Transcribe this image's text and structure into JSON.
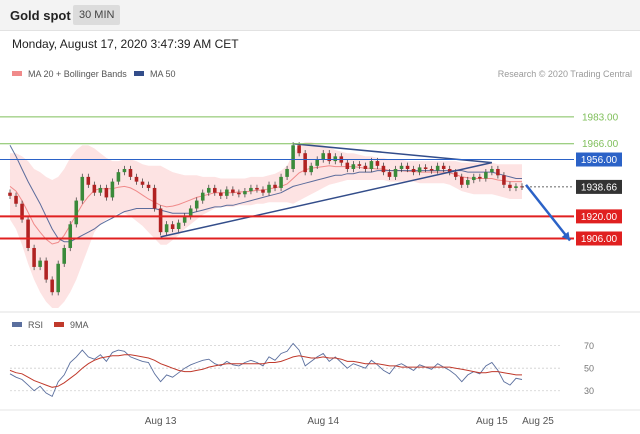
{
  "header": {
    "title": "Gold spot",
    "timeframe": "30 MIN"
  },
  "datetime": "Monday, August 17, 2020 3:47:39 AM CET",
  "credit": "Research © 2020 Trading Central",
  "colors": {
    "bollinger_fill": "#fde3e3",
    "ma20": "#f08a8a",
    "ma50": "#334d8a",
    "up_candle": "#3a8a3a",
    "down_candle": "#b02222",
    "resistance_green": "#7fbf5a",
    "blue_line": "#2b62c7",
    "support_red": "#e02020",
    "arrow": "#2b62c7",
    "last_price": "#333333"
  },
  "chart_data": [
    {
      "type": "line",
      "legend": [
        {
          "name": "MA 20 + Bollinger Bands",
          "color": "#f08a8a"
        },
        {
          "name": "MA 50",
          "color": "#334d8a"
        }
      ],
      "ylim": [
        1862,
        2000
      ],
      "levels": [
        {
          "value": 1983.0,
          "label": "1983.00",
          "kind": "resistance",
          "color": "#7fbf5a"
        },
        {
          "value": 1966.0,
          "label": "1966.00",
          "kind": "resistance",
          "color": "#7fbf5a"
        },
        {
          "value": 1956.0,
          "label": "1956.00",
          "kind": "resistance",
          "color": "#2b62c7"
        },
        {
          "value": 1938.66,
          "label": "1938.66",
          "kind": "last",
          "color": "#333333"
        },
        {
          "value": 1920.0,
          "label": "1920.00",
          "kind": "support",
          "color": "#e02020"
        },
        {
          "value": 1906.0,
          "label": "1906.00",
          "kind": "support",
          "color": "#e02020"
        }
      ],
      "x_ticks": [
        {
          "label": "Aug 13",
          "index": 25
        },
        {
          "label": "Aug 14",
          "index": 52
        },
        {
          "label": "Aug 15",
          "index": 80
        },
        {
          "label": "Aug 25",
          "index": 89
        }
      ],
      "close": [
        1933,
        1928,
        1918,
        1900,
        1888,
        1892,
        1880,
        1872,
        1890,
        1900,
        1915,
        1930,
        1945,
        1940,
        1935,
        1938,
        1932,
        1942,
        1948,
        1950,
        1945,
        1942,
        1940,
        1938,
        1925,
        1910,
        1915,
        1912,
        1916,
        1920,
        1925,
        1930,
        1935,
        1938,
        1935,
        1933,
        1937,
        1935,
        1934,
        1936,
        1938,
        1937,
        1935,
        1940,
        1938,
        1945,
        1950,
        1965,
        1960,
        1948,
        1952,
        1956,
        1960,
        1955,
        1958,
        1954,
        1950,
        1953,
        1952,
        1950,
        1955,
        1952,
        1948,
        1945,
        1950,
        1952,
        1950,
        1948,
        1951,
        1950,
        1949,
        1952,
        1950,
        1948,
        1945,
        1940,
        1943,
        1945,
        1944,
        1948,
        1950,
        1946,
        1940,
        1938,
        1939,
        1938.66
      ],
      "ma50": [
        1965,
        1958,
        1950,
        1942,
        1935,
        1928,
        1920,
        1912,
        1906,
        1904,
        1904,
        1906,
        1908,
        1910,
        1912,
        1915,
        1917,
        1919,
        1921,
        1923,
        1924,
        1925,
        1925,
        1925,
        1925,
        1924,
        1923,
        1922,
        1922,
        1922,
        1922,
        1923,
        1924,
        1925,
        1926,
        1926,
        1927,
        1927,
        1928,
        1929,
        1930,
        1931,
        1932,
        1933,
        1934,
        1935,
        1937,
        1939,
        1940,
        1941,
        1942,
        1943,
        1944,
        1945,
        1946,
        1946,
        1947,
        1947,
        1948,
        1948,
        1948,
        1949,
        1949,
        1949,
        1949,
        1949,
        1949,
        1949,
        1949,
        1949,
        1949,
        1949,
        1949,
        1949,
        1949,
        1949,
        1948,
        1948,
        1948,
        1948,
        1948,
        1947,
        1946,
        1945,
        1944,
        1944
      ],
      "bb_upper": [
        1960,
        1960,
        1958,
        1955,
        1950,
        1948,
        1945,
        1943,
        1945,
        1950,
        1957,
        1962,
        1965,
        1965,
        1963,
        1960,
        1957,
        1955,
        1955,
        1956,
        1956,
        1955,
        1953,
        1952,
        1952,
        1952,
        1950,
        1948,
        1947,
        1946,
        1946,
        1946,
        1945,
        1945,
        1945,
        1944,
        1944,
        1944,
        1944,
        1944,
        1945,
        1945,
        1945,
        1946,
        1947,
        1949,
        1952,
        1960,
        1965,
        1967,
        1967,
        1966,
        1965,
        1964,
        1962,
        1961,
        1960,
        1960,
        1959,
        1958,
        1958,
        1957,
        1957,
        1956,
        1956,
        1956,
        1955,
        1955,
        1955,
        1955,
        1955,
        1955,
        1955,
        1955,
        1955,
        1954,
        1954,
        1954,
        1954,
        1954,
        1954,
        1953,
        1953,
        1953,
        1953,
        1953
      ],
      "bb_lower": [
        1918,
        1912,
        1902,
        1890,
        1880,
        1872,
        1866,
        1862,
        1862,
        1866,
        1872,
        1880,
        1890,
        1900,
        1910,
        1915,
        1918,
        1920,
        1922,
        1922,
        1920,
        1917,
        1914,
        1910,
        1906,
        1902,
        1902,
        1905,
        1908,
        1912,
        1915,
        1918,
        1921,
        1923,
        1925,
        1926,
        1926,
        1926,
        1927,
        1927,
        1927,
        1928,
        1928,
        1929,
        1929,
        1929,
        1929,
        1928,
        1930,
        1932,
        1934,
        1936,
        1938,
        1940,
        1941,
        1942,
        1943,
        1943,
        1943,
        1943,
        1943,
        1943,
        1943,
        1942,
        1942,
        1942,
        1942,
        1942,
        1941,
        1941,
        1941,
        1941,
        1941,
        1940,
        1938,
        1936,
        1935,
        1934,
        1934,
        1934,
        1934,
        1933,
        1932,
        1931,
        1931,
        1931
      ]
    },
    {
      "type": "line",
      "legend": [
        {
          "name": "RSI",
          "color": "#5b6f9e"
        },
        {
          "name": "9MA",
          "color": "#c0392b"
        }
      ],
      "ylim": [
        20,
        75
      ],
      "y_ticks": [
        70,
        50,
        30
      ],
      "rsi": [
        45,
        42,
        40,
        35,
        30,
        34,
        28,
        25,
        38,
        44,
        55,
        60,
        66,
        60,
        58,
        62,
        56,
        64,
        66,
        65,
        60,
        58,
        56,
        55,
        45,
        38,
        44,
        42,
        46,
        50,
        53,
        55,
        57,
        58,
        54,
        52,
        56,
        53,
        52,
        55,
        57,
        55,
        52,
        60,
        57,
        63,
        65,
        72,
        66,
        52,
        56,
        60,
        63,
        56,
        60,
        55,
        50,
        54,
        52,
        50,
        57,
        53,
        48,
        45,
        52,
        54,
        51,
        48,
        53,
        51,
        49,
        54,
        51,
        48,
        44,
        38,
        44,
        47,
        45,
        52,
        55,
        48,
        38,
        35,
        41,
        40
      ],
      "ma9": [
        48,
        46,
        45,
        42,
        39,
        37,
        35,
        33,
        34,
        37,
        41,
        45,
        50,
        54,
        57,
        59,
        60,
        61,
        61,
        62,
        62,
        61,
        60,
        59,
        57,
        54,
        52,
        50,
        48,
        47,
        47,
        48,
        49,
        51,
        52,
        53,
        54,
        54,
        54,
        54,
        54,
        54,
        54,
        55,
        55,
        56,
        58,
        60,
        61,
        60,
        59,
        59,
        60,
        59,
        59,
        58,
        56,
        56,
        55,
        54,
        54,
        54,
        53,
        52,
        52,
        51,
        51,
        51,
        51,
        51,
        51,
        51,
        51,
        51,
        50,
        49,
        48,
        47,
        46,
        46,
        47,
        47,
        46,
        45,
        44,
        44
      ]
    }
  ]
}
